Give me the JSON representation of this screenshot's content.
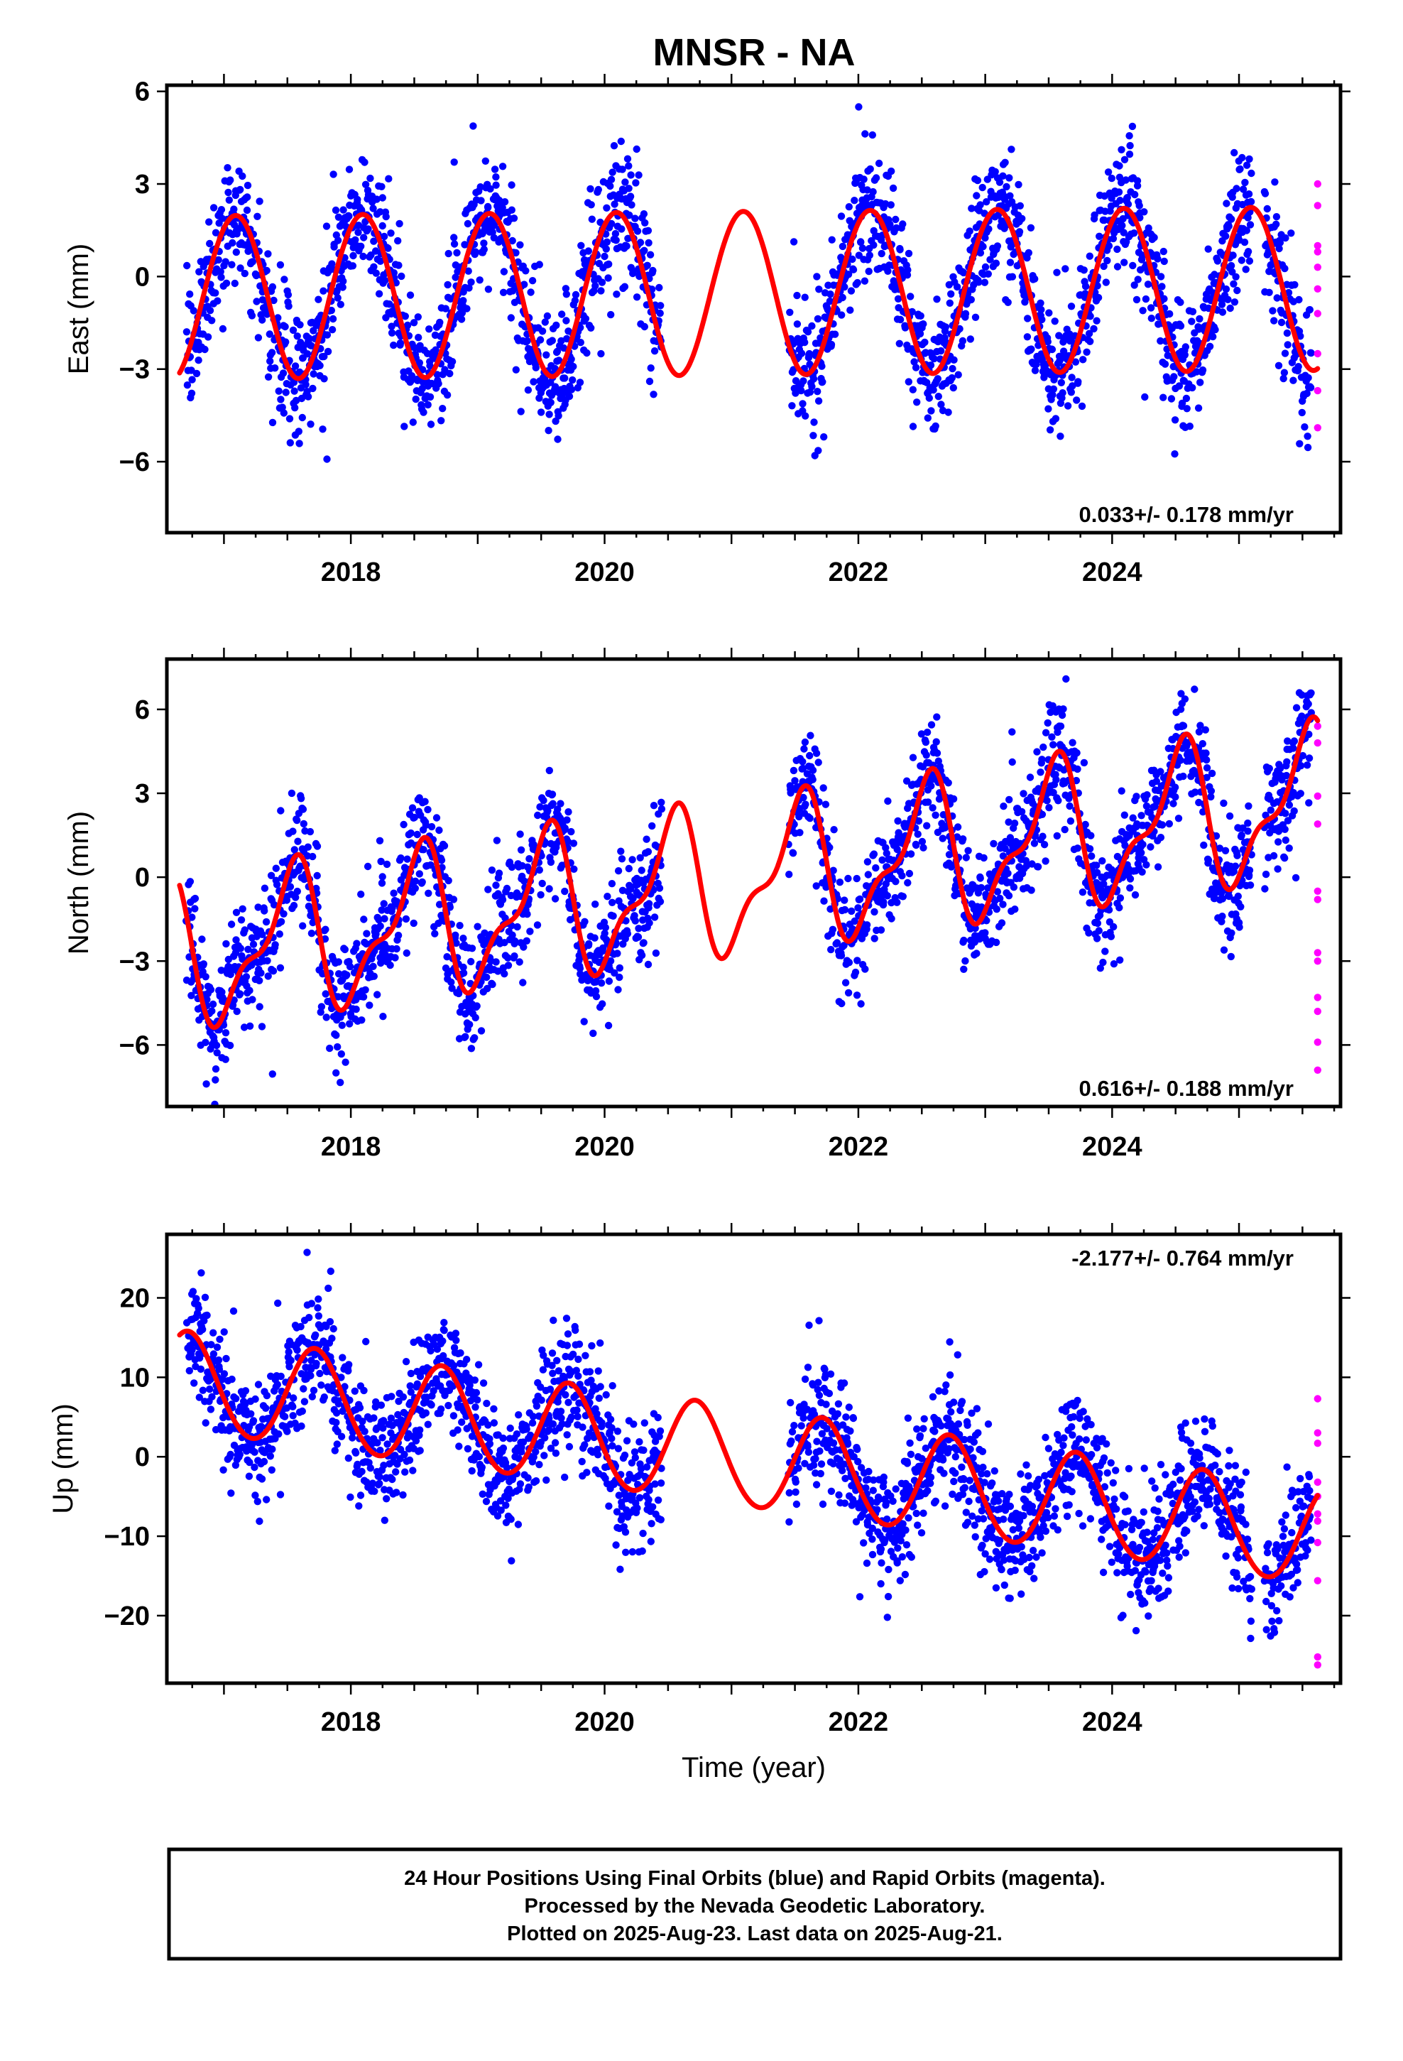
{
  "title": "MNSR - NA",
  "chart_data": [
    {
      "type": "scatter",
      "component": "East",
      "ylabel": "East (mm)",
      "xlim": [
        2016.55,
        2025.8
      ],
      "ylim": [
        -8.3,
        6.2
      ],
      "yticks": [
        -6,
        -3,
        0,
        3,
        6
      ],
      "xticks": [
        2018,
        2020,
        2022,
        2024
      ],
      "rate_label": "0.033+/- 0.178 mm/yr",
      "rate_position": "bottom-right",
      "final_color": "#0000ff",
      "rapid_color": "#ff00ff",
      "fit_color": "#ff0000",
      "final_orbit_segments": [
        [
          2016.7,
          2020.45
        ],
        [
          2021.45,
          2025.1
        ],
        [
          2025.2,
          2025.57
        ]
      ],
      "final_orbit_trend": {
        "rate": 0.033,
        "amplitude": 2.6,
        "phase_peak": 0.09,
        "scatter": 1.0,
        "outlier_fraction": 0.04,
        "outlier_amp": 2.8
      },
      "rapid_orbit_x": 2025.62,
      "rapid_orbit_y": [
        3.0,
        2.3,
        1.0,
        0.8,
        0.3,
        -0.4,
        -1.2,
        -2.5,
        -3.7,
        -4.9
      ],
      "fit": {
        "x_start": 2016.65,
        "x_end": 2025.62,
        "offset": -0.5,
        "rate": 0.033,
        "t_ref": 2021.0,
        "annual": {
          "amp": 2.65,
          "peak": 0.09
        },
        "semiannual": {
          "amp": 0.05,
          "peak": 0.3
        }
      }
    },
    {
      "type": "scatter",
      "component": "North",
      "ylabel": "North (mm)",
      "xlim": [
        2016.55,
        2025.8
      ],
      "ylim": [
        -8.2,
        7.8
      ],
      "yticks": [
        -6,
        -3,
        0,
        3,
        6
      ],
      "xticks": [
        2018,
        2020,
        2022,
        2024
      ],
      "rate_label": "0.616+/- 0.188 mm/yr",
      "rate_position": "bottom-right",
      "final_color": "#0000ff",
      "rapid_color": "#ff00ff",
      "fit_color": "#ff0000",
      "final_orbit_segments": [
        [
          2016.7,
          2020.45
        ],
        [
          2021.45,
          2025.1
        ],
        [
          2025.2,
          2025.57
        ]
      ],
      "final_orbit_trend": {
        "rate": 0.616,
        "amplitude": 2.4,
        "phase_peak": 0.5,
        "scatter": 1.05,
        "outlier_fraction": 0.04,
        "outlier_amp": 2.6
      },
      "rapid_orbit_x": 2025.62,
      "rapid_orbit_y": [
        5.4,
        4.8,
        2.9,
        1.9,
        -0.5,
        -0.8,
        -2.7,
        -3.0,
        -4.3,
        -4.8,
        -5.9,
        -6.9
      ],
      "fit": {
        "x_start": 2016.65,
        "x_end": 2025.62,
        "offset": -0.15,
        "rate": 0.616,
        "t_ref": 2021.0,
        "annual": {
          "amp": 2.35,
          "peak": 0.52
        },
        "semiannual": {
          "amp": 1.0,
          "peak": 0.12
        }
      }
    },
    {
      "type": "scatter",
      "component": "Up",
      "ylabel": "Up (mm)",
      "xlabel": "Time (year)",
      "xlim": [
        2016.55,
        2025.8
      ],
      "ylim": [
        -28.5,
        28.0
      ],
      "yticks": [
        -20,
        -10,
        0,
        10,
        20
      ],
      "xticks": [
        2018,
        2020,
        2022,
        2024
      ],
      "rate_label": "-2.177+/- 0.764 mm/yr",
      "rate_position": "top-right",
      "final_color": "#0000ff",
      "rapid_color": "#ff00ff",
      "fit_color": "#ff0000",
      "final_orbit_segments": [
        [
          2016.7,
          2020.45
        ],
        [
          2021.45,
          2025.1
        ],
        [
          2025.2,
          2025.57
        ]
      ],
      "final_orbit_trend": {
        "rate": -2.177,
        "amplitude": 5.5,
        "phase_peak": 0.72,
        "scatter": 3.6,
        "outlier_fraction": 0.04,
        "outlier_amp": 9.0
      },
      "rapid_orbit_x": 2025.62,
      "rapid_orbit_y": [
        7.3,
        3.0,
        1.7,
        -3.2,
        -5.0,
        -7.2,
        -8.1,
        -10.8,
        -15.6,
        -25.2,
        -26.2
      ],
      "fit": {
        "x_start": 2016.65,
        "x_end": 2025.62,
        "offset": 0.0,
        "rate": -2.177,
        "t_ref": 2021.0,
        "annual": {
          "amp": 6.2,
          "peak": 0.72
        },
        "semiannual": {
          "amp": 0.3,
          "peak": 0.2
        }
      }
    }
  ],
  "footer": {
    "line1": "24 Hour Positions Using Final Orbits (blue) and Rapid Orbits (magenta).",
    "line2": "Processed by the Nevada Geodetic Laboratory.",
    "line3": "Plotted on 2025-Aug-23. Last data on 2025-Aug-21."
  }
}
